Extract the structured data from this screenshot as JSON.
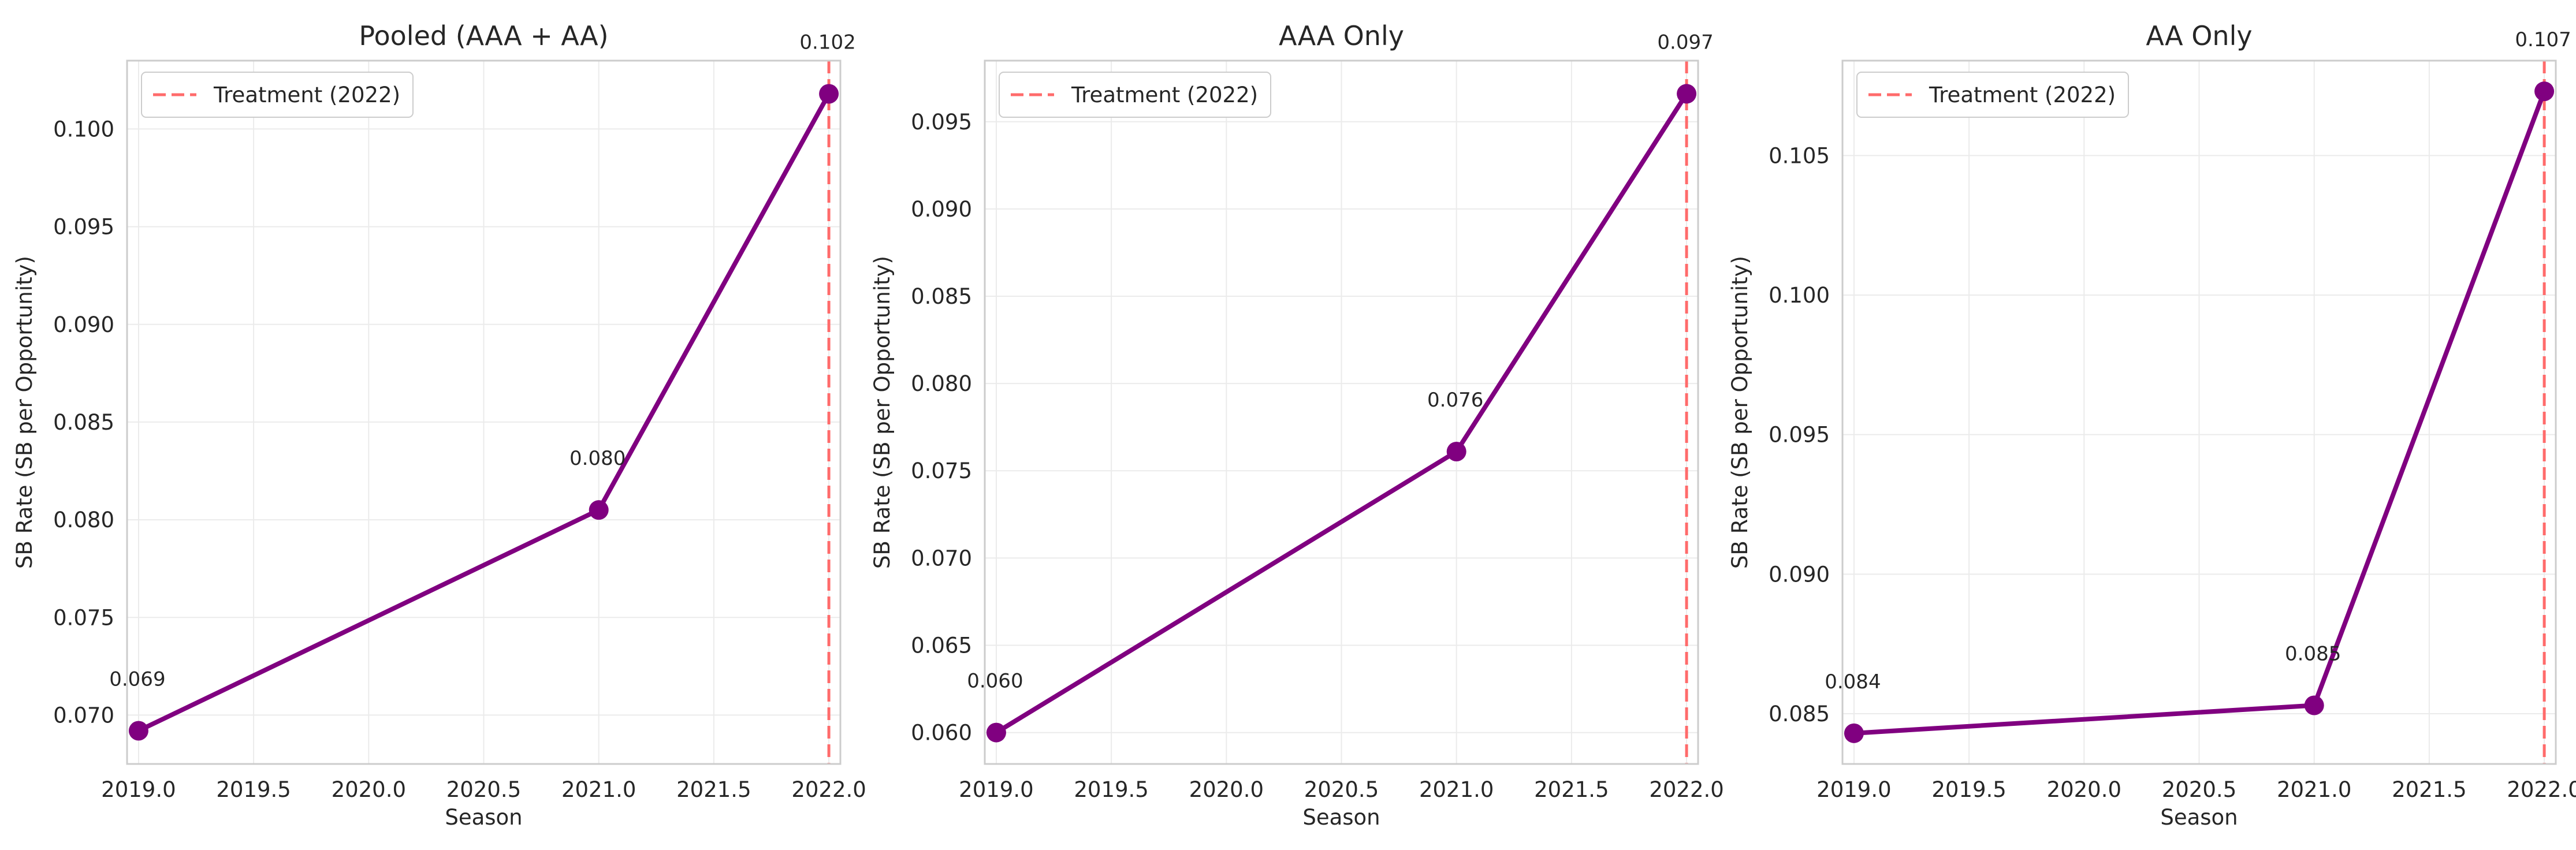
{
  "chart_data": [
    {
      "type": "line",
      "title": "Pooled (AAA + AA)",
      "xlabel": "Season",
      "ylabel": "SB Rate (SB per Opportunity)",
      "x": [
        2019,
        2021,
        2022
      ],
      "values": [
        0.0692,
        0.0805,
        0.1018
      ],
      "point_labels": [
        "0.069",
        "0.080",
        "0.102"
      ],
      "xlim": [
        2018.95,
        2022.05
      ],
      "ylim": [
        0.0675,
        0.1035
      ],
      "xticks": [
        2019.0,
        2019.5,
        2020.0,
        2020.5,
        2021.0,
        2021.5,
        2022.0
      ],
      "xtick_labels": [
        "2019.0",
        "2019.5",
        "2020.0",
        "2020.5",
        "2021.0",
        "2021.5",
        "2022.0"
      ],
      "yticks": [
        0.07,
        0.075,
        0.08,
        0.085,
        0.09,
        0.095,
        0.1
      ],
      "ytick_labels": [
        "0.070",
        "0.075",
        "0.080",
        "0.085",
        "0.090",
        "0.095",
        "0.100"
      ],
      "treatment_x": 2022,
      "legend": "Treatment (2022)",
      "legend_position": "top-left",
      "grid": true
    },
    {
      "type": "line",
      "title": "AAA Only",
      "xlabel": "Season",
      "ylabel": "SB Rate (SB per Opportunity)",
      "x": [
        2019,
        2021,
        2022
      ],
      "values": [
        0.06,
        0.0761,
        0.0966
      ],
      "point_labels": [
        "0.060",
        "0.076",
        "0.097"
      ],
      "xlim": [
        2018.95,
        2022.05
      ],
      "ylim": [
        0.0582,
        0.0985
      ],
      "xticks": [
        2019.0,
        2019.5,
        2020.0,
        2020.5,
        2021.0,
        2021.5,
        2022.0
      ],
      "xtick_labels": [
        "2019.0",
        "2019.5",
        "2020.0",
        "2020.5",
        "2021.0",
        "2021.5",
        "2022.0"
      ],
      "yticks": [
        0.06,
        0.065,
        0.07,
        0.075,
        0.08,
        0.085,
        0.09,
        0.095
      ],
      "ytick_labels": [
        "0.060",
        "0.065",
        "0.070",
        "0.075",
        "0.080",
        "0.085",
        "0.090",
        "0.095"
      ],
      "treatment_x": 2022,
      "legend": "Treatment (2022)",
      "legend_position": "top-left",
      "grid": true
    },
    {
      "type": "line",
      "title": "AA Only",
      "xlabel": "Season",
      "ylabel": "SB Rate (SB per Opportunity)",
      "x": [
        2019,
        2021,
        2022
      ],
      "values": [
        0.0843,
        0.0853,
        0.1073
      ],
      "point_labels": [
        "0.084",
        "0.085",
        "0.107"
      ],
      "xlim": [
        2018.95,
        2022.05
      ],
      "ylim": [
        0.0832,
        0.1084
      ],
      "xticks": [
        2019.0,
        2019.5,
        2020.0,
        2020.5,
        2021.0,
        2021.5,
        2022.0
      ],
      "xtick_labels": [
        "2019.0",
        "2019.5",
        "2020.0",
        "2020.5",
        "2021.0",
        "2021.5",
        "2022.0"
      ],
      "yticks": [
        0.085,
        0.09,
        0.095,
        0.1,
        0.105
      ],
      "ytick_labels": [
        "0.085",
        "0.090",
        "0.095",
        "0.100",
        "0.105"
      ],
      "treatment_x": 2022,
      "legend": "Treatment (2022)",
      "legend_position": "top-left",
      "grid": true
    }
  ],
  "colors": {
    "line": "#800080",
    "treatment": "#ff6b6b",
    "grid": "#ebebeb",
    "axes_edge": "#cccccc",
    "text": "#262626"
  }
}
